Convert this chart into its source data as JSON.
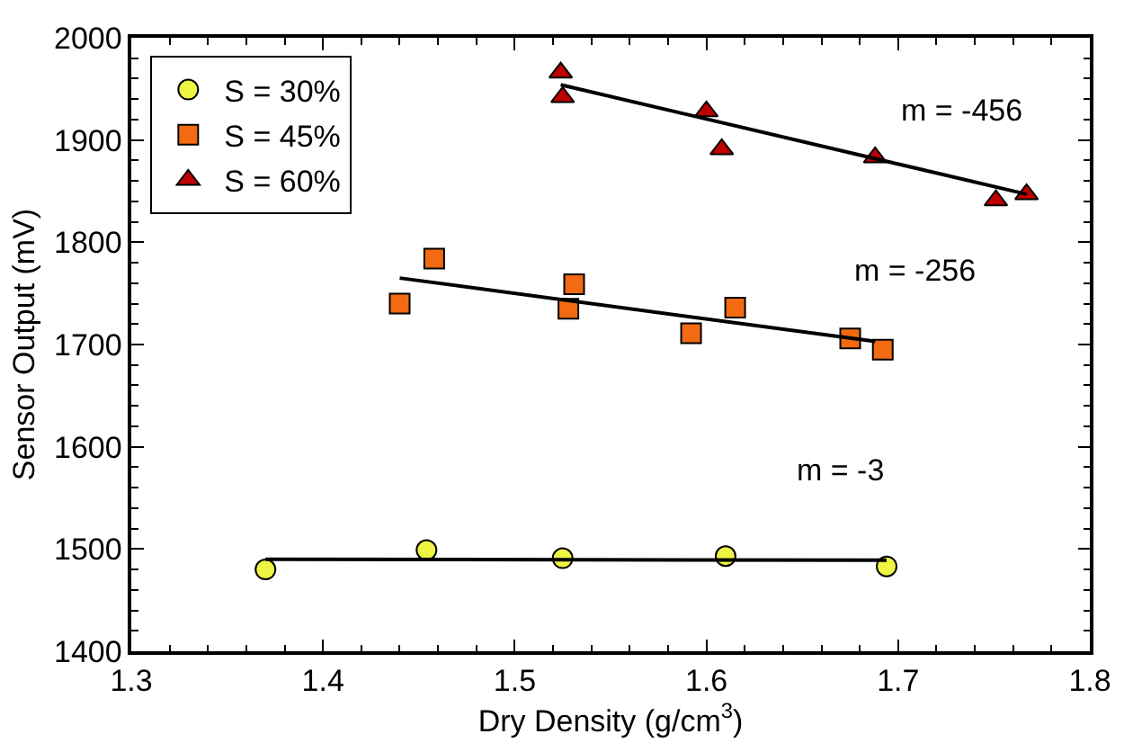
{
  "chart_data": {
    "type": "scatter",
    "xlabel": "Dry Density (g/cm$^{3}$)",
    "ylabel": "Sensor Output (mV)",
    "xlim": [
      1.3,
      1.8
    ],
    "xticks": [
      1.3,
      1.4,
      1.5,
      1.6,
      1.7,
      1.8
    ],
    "ylim": [
      1400,
      2000
    ],
    "yticks": [
      1400,
      1500,
      1600,
      1700,
      1800,
      1900,
      2000
    ],
    "legend": "top left",
    "series": [
      {
        "name": "S = 30%",
        "color": "#eef542",
        "marker": "circle",
        "x": [
          1.37,
          1.454,
          1.525,
          1.61,
          1.694
        ],
        "values": [
          1480,
          1499,
          1491,
          1493,
          1483
        ]
      },
      {
        "name": "S = 45%",
        "color": "#f26a11",
        "marker": "square",
        "x": [
          1.44,
          1.458,
          1.528,
          1.531,
          1.592,
          1.615,
          1.675,
          1.692
        ],
        "values": [
          1740,
          1784,
          1735,
          1759,
          1711,
          1736,
          1706,
          1695
        ]
      },
      {
        "name": "S = 60%",
        "color": "#c00000",
        "marker": "triangle",
        "x": [
          1.524,
          1.525,
          1.6,
          1.608,
          1.688,
          1.751,
          1.767
        ],
        "values": [
          1966,
          1942,
          1928,
          1891,
          1883,
          1841,
          1847
        ]
      },
      {
        "type": "line",
        "color": "#000000",
        "marker": "none",
        "x": [
          1.37,
          1.694
        ],
        "values": [
          1490,
          1489
        ]
      },
      {
        "type": "line",
        "color": "#000000",
        "marker": "none",
        "x": [
          1.44,
          1.688
        ],
        "values": [
          1765,
          1703
        ]
      },
      {
        "type": "line",
        "color": "#000000",
        "marker": "none",
        "x": [
          1.524,
          1.767
        ],
        "values": [
          1954,
          1847
        ]
      }
    ],
    "annotations": [
      "m = -456",
      "m = -256",
      "m = -3"
    ]
  }
}
